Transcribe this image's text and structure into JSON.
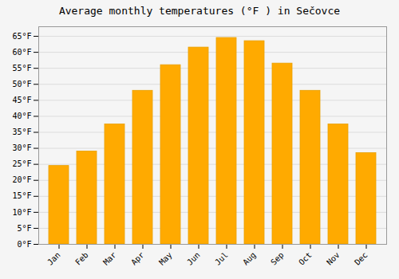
{
  "chart_data": {
    "type": "bar",
    "title": "Average monthly temperatures (°F ) in Sečovce",
    "categories": [
      "Jan",
      "Feb",
      "Mar",
      "Apr",
      "May",
      "Jun",
      "Jul",
      "Aug",
      "Sep",
      "Oct",
      "Nov",
      "Dec"
    ],
    "values": [
      24.5,
      29.0,
      37.5,
      48.0,
      56.0,
      61.5,
      64.5,
      63.5,
      56.5,
      48.0,
      37.5,
      28.5
    ],
    "color": "#FFAA00",
    "ylim": [
      0,
      68
    ],
    "yticks": [
      {
        "value": 0,
        "label": "0°F"
      },
      {
        "value": 5,
        "label": "5°F"
      },
      {
        "value": 10,
        "label": "10°F"
      },
      {
        "value": 15,
        "label": "15°F"
      },
      {
        "value": 20,
        "label": "20°F"
      },
      {
        "value": 25,
        "label": "25°F"
      },
      {
        "value": 30,
        "label": "30°F"
      },
      {
        "value": 35,
        "label": "35°F"
      },
      {
        "value": 40,
        "label": "40°F"
      },
      {
        "value": 45,
        "label": "45°F"
      },
      {
        "value": 50,
        "label": "50°F"
      },
      {
        "value": 55,
        "label": "55°F"
      },
      {
        "value": 60,
        "label": "60°F"
      },
      {
        "value": 65,
        "label": "65°F"
      }
    ],
    "grid": true
  }
}
